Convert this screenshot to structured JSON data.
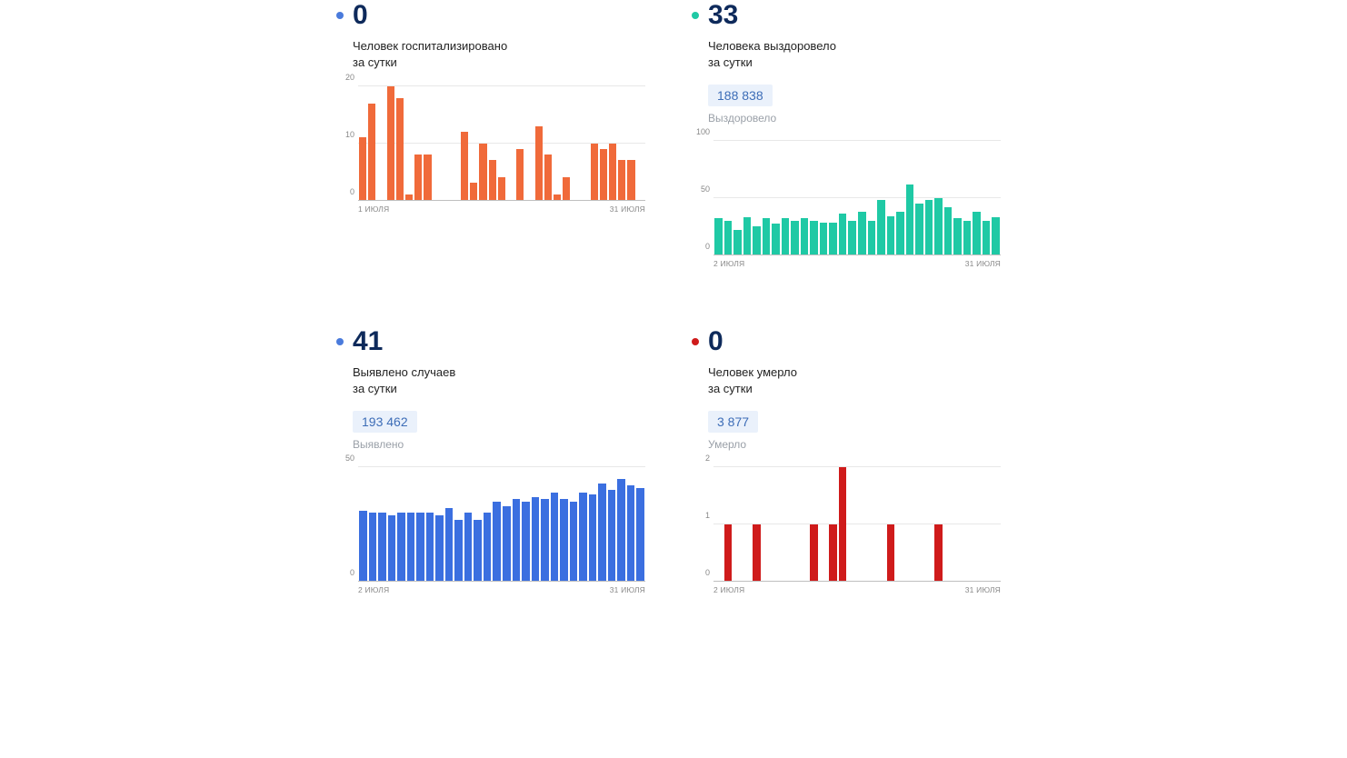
{
  "background_color": "#ffffff",
  "axis_color": "#bfbfbf",
  "grid_color": "#e8e8e8",
  "tick_color": "#888888",
  "tick_fontsize": 9,
  "xlabel_fontsize": 8.5,
  "cards": {
    "hospitalized": {
      "dot_color": "#4a7bdc",
      "value": "0",
      "value_color": "#0e2a5b",
      "subtitle_line1": "Человек госпитализировано",
      "subtitle_line2": "за сутки",
      "chart": {
        "type": "bar",
        "bar_color": "#f06a3a",
        "ymax": 20,
        "yticks": [
          0,
          10,
          20
        ],
        "x_start": "1 ИЮЛЯ",
        "x_end": "31 ИЮЛЯ",
        "values": [
          11,
          17,
          0,
          20,
          18,
          1,
          8,
          8,
          0,
          0,
          0,
          12,
          3,
          10,
          7,
          4,
          0,
          9,
          0,
          13,
          8,
          1,
          4,
          0,
          0,
          10,
          9,
          10,
          7,
          7,
          0
        ]
      }
    },
    "recovered": {
      "dot_color": "#1fc9a5",
      "value": "33",
      "value_color": "#0e2a5b",
      "subtitle_line1": "Человека выздоровело",
      "subtitle_line2": "за сутки",
      "total_badge": "188 838",
      "total_label": "Выздоровело",
      "chart": {
        "type": "bar",
        "bar_color": "#1fc9a5",
        "ymax": 100,
        "yticks": [
          0,
          50,
          100
        ],
        "x_start": "2 ИЮЛЯ",
        "x_end": "31 ИЮЛЯ",
        "values": [
          32,
          30,
          22,
          33,
          25,
          32,
          27,
          32,
          30,
          32,
          30,
          28,
          28,
          36,
          30,
          38,
          30,
          48,
          34,
          38,
          62,
          45,
          48,
          50,
          42,
          32,
          30,
          38,
          30,
          33
        ]
      }
    },
    "detected": {
      "dot_color": "#4a7bdc",
      "value": "41",
      "value_color": "#0e2a5b",
      "subtitle_line1": "Выявлено случаев",
      "subtitle_line2": "за сутки",
      "total_badge": "193 462",
      "total_label": "Выявлено",
      "chart": {
        "type": "bar",
        "bar_color": "#3b6fe0",
        "ymax": 50,
        "yticks": [
          0,
          50
        ],
        "x_start": "2 ИЮЛЯ",
        "x_end": "31 ИЮЛЯ",
        "values": [
          31,
          30,
          30,
          29,
          30,
          30,
          30,
          30,
          29,
          32,
          27,
          30,
          27,
          30,
          35,
          33,
          36,
          35,
          37,
          36,
          39,
          36,
          35,
          39,
          38,
          43,
          40,
          45,
          42,
          41
        ]
      }
    },
    "deaths": {
      "dot_color": "#cf1b1b",
      "value": "0",
      "value_color": "#0e2a5b",
      "subtitle_line1": "Человек умерло",
      "subtitle_line2": "за сутки",
      "total_badge": "3 877",
      "total_label": "Умерло",
      "chart": {
        "type": "bar",
        "bar_color": "#cf1b1b",
        "ymax": 2,
        "yticks": [
          0,
          1,
          2
        ],
        "x_start": "2 ИЮЛЯ",
        "x_end": "31 ИЮЛЯ",
        "values": [
          0,
          1,
          0,
          0,
          1,
          0,
          0,
          0,
          0,
          0,
          1,
          0,
          1,
          2,
          0,
          0,
          0,
          0,
          1,
          0,
          0,
          0,
          0,
          1,
          0,
          0,
          0,
          0,
          0,
          0
        ]
      }
    }
  }
}
